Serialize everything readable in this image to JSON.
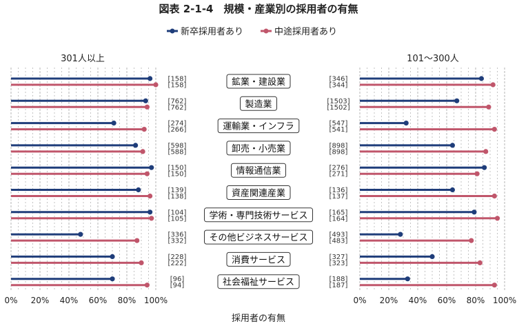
{
  "title": "図表 2-1-4　規模・産業別の採用者の有無",
  "xlabel": "採用者の有無",
  "colors": {
    "new_grad": "#1f3d7a",
    "mid_career": "#c0566b",
    "grid": "#b5b5b5"
  },
  "chart_data": [
    {
      "type": "lollipop",
      "panel_title": "301人以上",
      "xlim": [
        0,
        100
      ],
      "xticks": [
        "0%",
        "20%",
        "40%",
        "60%",
        "80%",
        "100%"
      ],
      "grid": true,
      "legend_position": "top-center",
      "categories": [
        "鉱業・建設業",
        "製造業",
        "運輸業・インフラ",
        "卸売・小売業",
        "情報通信業",
        "資産関連産業",
        "学術・専門技術サービス",
        "その他ビジネスサービス",
        "消費サービス",
        "社会福祉サービス"
      ],
      "series": [
        {
          "name": "新卒採用者あり",
          "values": [
            96,
            93,
            71,
            86,
            97,
            88,
            96,
            48,
            70,
            70
          ],
          "n": [
            "[158]",
            "[762]",
            "[274]",
            "[598]",
            "[150]",
            "[139]",
            "[104]",
            "[336]",
            "[228]",
            "[96]"
          ]
        },
        {
          "name": "中途採用者あり",
          "values": [
            100,
            94,
            92,
            91,
            94,
            96,
            97,
            87,
            90,
            94
          ],
          "n": [
            "[158]",
            "[762]",
            "[266]",
            "[588]",
            "[150]",
            "[138]",
            "[105]",
            "[332]",
            "[222]",
            "[94]"
          ]
        }
      ]
    },
    {
      "type": "lollipop",
      "panel_title": "101～300人",
      "xlim": [
        0,
        100
      ],
      "xticks": [
        "0%",
        "20%",
        "40%",
        "60%",
        "80%",
        "100%"
      ],
      "grid": true,
      "categories": [
        "鉱業・建設業",
        "製造業",
        "運輸業・インフラ",
        "卸売・小売業",
        "情報通信業",
        "資産関連産業",
        "学術・専門技術サービス",
        "その他ビジネスサービス",
        "消費サービス",
        "社会福祉サービス"
      ],
      "series": [
        {
          "name": "新卒採用者あり",
          "values": [
            84,
            67,
            32,
            64,
            86,
            64,
            79,
            28,
            50,
            33
          ],
          "n": [
            "[346]",
            "[1503]",
            "[547]",
            "[898]",
            "[276]",
            "[136]",
            "[165]",
            "[493]",
            "[327]",
            "[188]"
          ]
        },
        {
          "name": "中途採用者あり",
          "values": [
            92,
            89,
            93,
            87,
            81,
            93,
            95,
            77,
            83,
            93
          ],
          "n": [
            "[344]",
            "[1502]",
            "[541]",
            "[898]",
            "[271]",
            "[137]",
            "[164]",
            "[483]",
            "[323]",
            "[187]"
          ]
        }
      ]
    }
  ]
}
